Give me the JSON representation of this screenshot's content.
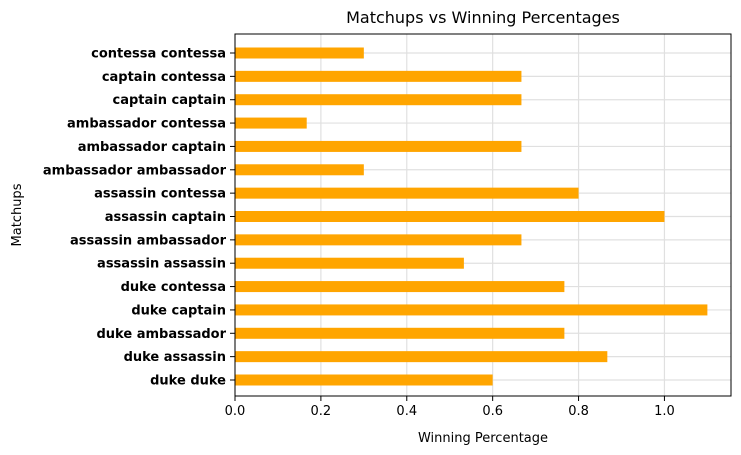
{
  "chart_data": {
    "type": "bar",
    "orientation": "horizontal",
    "title": "Matchups vs Winning Percentages",
    "xlabel": "Winning Percentage",
    "ylabel": "Matchups",
    "categories": [
      "duke duke",
      "duke assassin",
      "duke ambassador",
      "duke captain",
      "duke contessa",
      "assassin assassin",
      "assassin ambassador",
      "assassin captain",
      "assassin contessa",
      "ambassador ambassador",
      "ambassador captain",
      "ambassador contessa",
      "captain captain",
      "captain contessa",
      "contessa contessa"
    ],
    "values": [
      0.6,
      0.867,
      0.767,
      1.1,
      0.767,
      0.533,
      0.667,
      1.0,
      0.8,
      0.3,
      0.667,
      0.167,
      0.667,
      0.667,
      0.3
    ],
    "xlim": [
      0,
      1.155
    ],
    "x_ticks": [
      0.0,
      0.2,
      0.4,
      0.6,
      0.8,
      1.0
    ],
    "x_tick_labels": [
      "0.0",
      "0.2",
      "0.4",
      "0.6",
      "0.8",
      "1.0"
    ],
    "grid": true,
    "bar_color": "#FFA500",
    "grid_color": "#e0e0e0"
  }
}
